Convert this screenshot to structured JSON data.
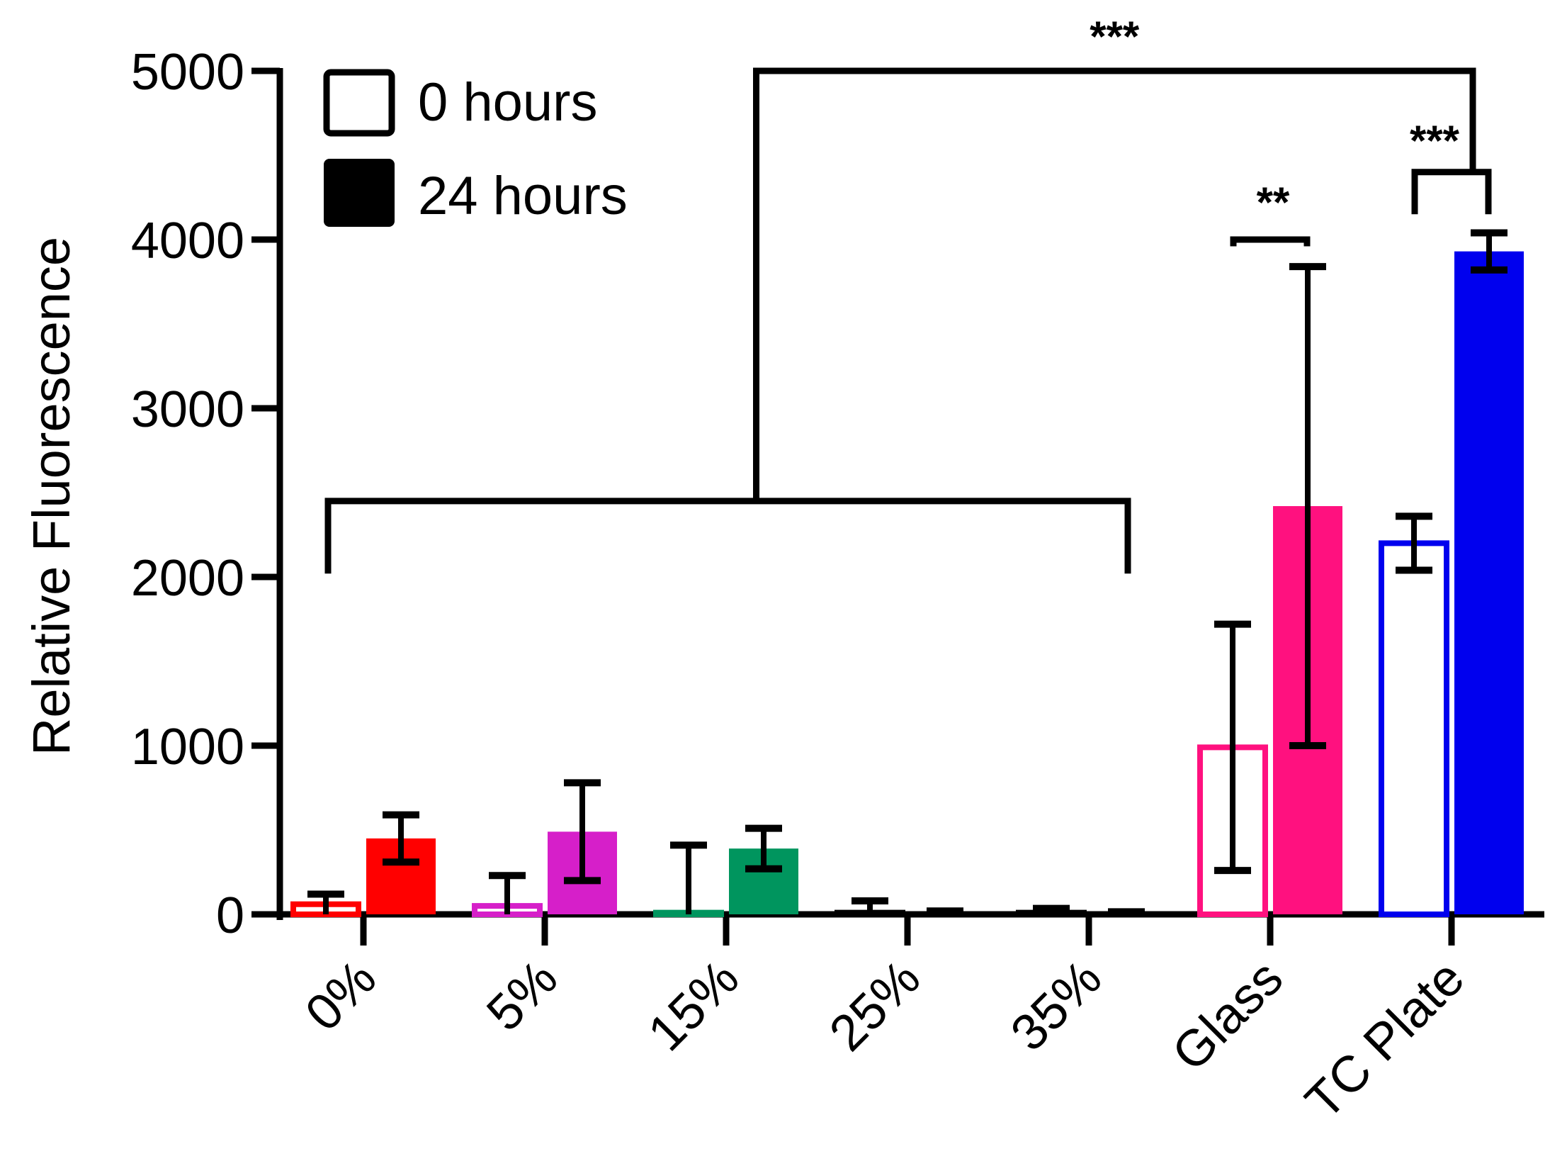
{
  "chart_data": {
    "type": "bar",
    "title": "",
    "xlabel": "",
    "ylabel": "Relative Fluorescence",
    "ylim": [
      0,
      5000
    ],
    "yticks": [
      "0",
      "1000",
      "2000",
      "3000",
      "4000",
      "5000"
    ],
    "categories": [
      "0%",
      "5%",
      "15%",
      "25%",
      "35%",
      "Glass",
      "TC Plate"
    ],
    "category_colors": [
      "#FF0000",
      "#D61FC9",
      "#00955E",
      "#000000",
      "#000000",
      "#FF117F",
      "#0000EE"
    ],
    "series": [
      {
        "name": "0 hours",
        "fill": "hollow",
        "values": [
          60,
          50,
          10,
          10,
          10,
          990,
          2200
        ],
        "error": [
          60,
          180,
          400,
          70,
          25,
          730,
          160
        ]
      },
      {
        "name": "24 hours",
        "fill": "solid",
        "values": [
          450,
          490,
          390,
          10,
          10,
          2420,
          3930
        ],
        "error": [
          140,
          290,
          120,
          10,
          5,
          1420,
          110
        ]
      }
    ],
    "legend": {
      "placement": "top-left",
      "entries": [
        "0 hours",
        "24 hours"
      ]
    },
    "significance": [
      {
        "label": "***",
        "span": "0%-35% vs TC Plate",
        "level": 5000
      },
      {
        "label": "**",
        "span": "Glass 0 hours vs 24 hours",
        "level": 4000
      },
      {
        "label": "***",
        "span": "TC Plate 0 hours vs 24 hours",
        "level": 4400
      }
    ]
  }
}
